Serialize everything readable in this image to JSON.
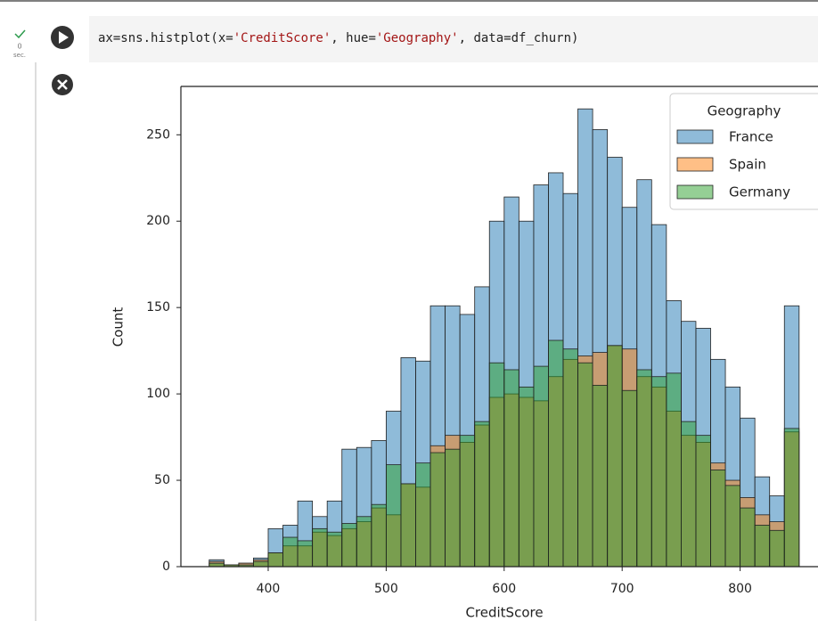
{
  "cell": {
    "status_seconds": "0",
    "status_unit": "sec.",
    "code_tokens": [
      "ax=sns.histplot(x=",
      "'CreditScore'",
      ", hue=",
      "'Geography'",
      ", data=df_churn)"
    ]
  },
  "chart_data": {
    "type": "histogram",
    "xlabel": "CreditScore",
    "ylabel": "Count",
    "legend_title": "Geography",
    "legend_position": "upper right",
    "bins": [
      350,
      362.5,
      375,
      387.5,
      400,
      412.5,
      425,
      437.5,
      450,
      462.5,
      475,
      487.5,
      500,
      512.5,
      525,
      537.5,
      550,
      562.5,
      575,
      587.5,
      600,
      612.5,
      625,
      637.5,
      650,
      662.5,
      675,
      687.5,
      700,
      712.5,
      725,
      737.5,
      750,
      762.5,
      775,
      787.5,
      800,
      812.5,
      825,
      837.5,
      850
    ],
    "series": [
      {
        "name": "France",
        "color": "#1f77b4",
        "values": [
          4,
          1,
          2,
          5,
          22,
          24,
          38,
          29,
          38,
          68,
          69,
          73,
          90,
          121,
          119,
          151,
          151,
          146,
          162,
          200,
          214,
          200,
          221,
          228,
          216,
          265,
          253,
          237,
          208,
          224,
          198,
          154,
          142,
          138,
          120,
          104,
          86,
          52,
          41,
          151
        ]
      },
      {
        "name": "Spain",
        "color": "#ff7f0e",
        "values": [
          3,
          1,
          2,
          4,
          8,
          12,
          12,
          20,
          18,
          22,
          26,
          34,
          30,
          48,
          46,
          70,
          76,
          72,
          82,
          98,
          100,
          98,
          96,
          110,
          120,
          122,
          124,
          128,
          126,
          110,
          104,
          90,
          76,
          72,
          60,
          50,
          40,
          30,
          26,
          78
        ]
      },
      {
        "name": "Germany",
        "color": "#2ca02c",
        "values": [
          2,
          1,
          1,
          3,
          8,
          17,
          15,
          22,
          20,
          25,
          29,
          36,
          59,
          48,
          60,
          66,
          68,
          76,
          84,
          118,
          114,
          104,
          116,
          131,
          126,
          118,
          105,
          128,
          102,
          114,
          110,
          112,
          84,
          76,
          56,
          47,
          34,
          24,
          21,
          80
        ]
      }
    ],
    "xlim": [
      326,
      866
    ],
    "ylim": [
      0,
      278
    ],
    "xticks": [
      400,
      500,
      600,
      700,
      800
    ],
    "yticks": [
      0,
      50,
      100,
      150,
      200,
      250
    ]
  }
}
